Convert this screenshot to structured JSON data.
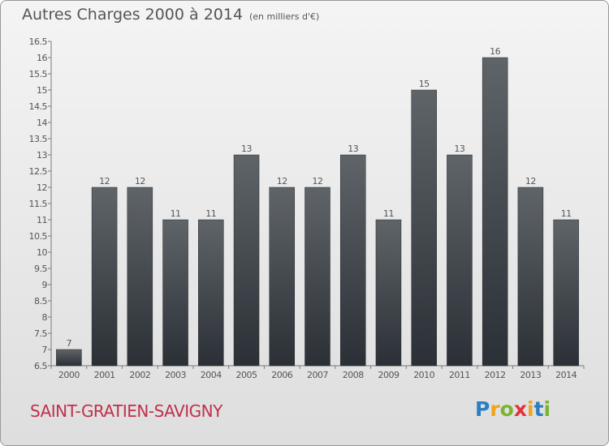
{
  "header": {
    "title": "Autres Charges 2000 à 2014",
    "subtitle": "(en milliers d'€)"
  },
  "footer": {
    "commune": "SAINT-GRATIEN-SAVIGNY",
    "logo_letters": [
      "P",
      "r",
      "o",
      "x",
      "i",
      "t",
      "i"
    ],
    "logo_colors": [
      "#2b7fc1",
      "#f2a31b",
      "#7ab52d",
      "#e5313d",
      "#f2a31b",
      "#2b7fc1",
      "#7ab52d"
    ]
  },
  "chart_data": {
    "type": "bar",
    "categories": [
      "2000",
      "2001",
      "2002",
      "2003",
      "2004",
      "2005",
      "2006",
      "2007",
      "2008",
      "2009",
      "2010",
      "2011",
      "2012",
      "2013",
      "2014"
    ],
    "values": [
      7,
      12,
      12,
      11,
      11,
      13,
      12,
      12,
      13,
      11,
      15,
      13,
      16,
      12,
      11
    ],
    "value_labels": [
      "7",
      "12",
      "12",
      "11",
      "11",
      "13",
      "12",
      "12",
      "13",
      "11",
      "15",
      "13",
      "16",
      "12",
      "11"
    ],
    "title": "Autres Charges 2000 à 2014",
    "subtitle": "(en milliers d'€)",
    "ylim": [
      6.5,
      16.5
    ],
    "yticks": [
      "6.5",
      "7",
      "7.5",
      "8",
      "8.5",
      "9",
      "9.5",
      "10",
      "10.5",
      "11",
      "11.5",
      "12",
      "12.5",
      "13",
      "13.5",
      "14",
      "14.5",
      "15",
      "15.5",
      "16",
      "16.5"
    ],
    "grid": false,
    "colors": {
      "bar_top": "#5f6469",
      "bar_bottom": "#2b3036",
      "axis": "#7a7a7a",
      "text": "#555555"
    }
  }
}
